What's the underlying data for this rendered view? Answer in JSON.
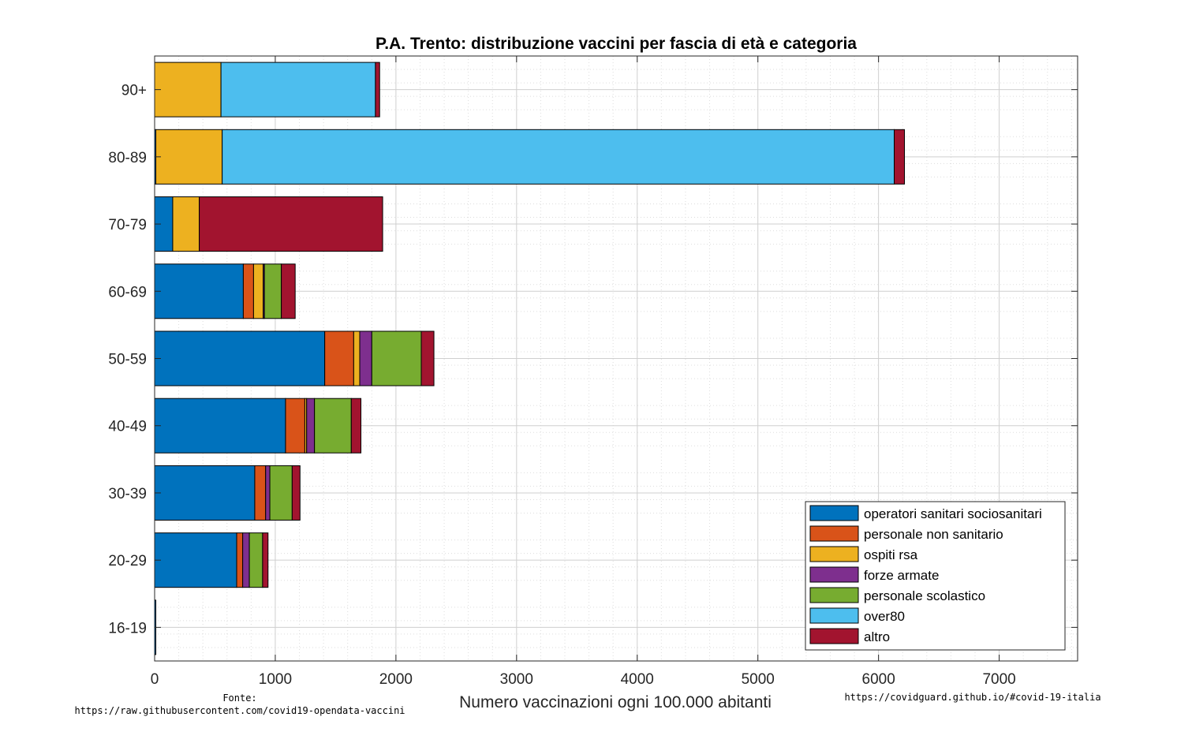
{
  "chart_data": {
    "type": "bar",
    "orientation": "horizontal",
    "stacked": true,
    "title": "P.A. Trento: distribuzione vaccini per fascia di età e categoria",
    "xlabel": "Numero vaccinazioni ogni 100.000 abitanti",
    "ylabel": "",
    "xlim": [
      0,
      7650
    ],
    "xticks": [
      0,
      1000,
      2000,
      3000,
      4000,
      5000,
      6000,
      7000
    ],
    "grid": true,
    "legend_position": "bottom-right",
    "categories": [
      "90+",
      "80-89",
      "70-79",
      "60-69",
      "50-59",
      "40-49",
      "30-39",
      "20-29",
      "16-19"
    ],
    "series": [
      {
        "name": "operatori sanitari sociosanitari",
        "color": "#0072BD",
        "values": [
          0,
          10,
          150,
          735,
          1410,
          1085,
          830,
          680,
          10
        ]
      },
      {
        "name": "personale non sanitario",
        "color": "#D95319",
        "values": [
          0,
          0,
          0,
          85,
          240,
          160,
          90,
          50,
          0
        ]
      },
      {
        "name": "ospiti rsa",
        "color": "#EDB120",
        "values": [
          550,
          550,
          220,
          80,
          50,
          15,
          0,
          0,
          0
        ]
      },
      {
        "name": "forze armate",
        "color": "#7E2F8E",
        "values": [
          0,
          0,
          0,
          10,
          100,
          65,
          35,
          55,
          0
        ]
      },
      {
        "name": "personale scolastico",
        "color": "#77AC30",
        "values": [
          0,
          0,
          0,
          140,
          410,
          305,
          185,
          110,
          0
        ]
      },
      {
        "name": "over80",
        "color": "#4DBEEE",
        "values": [
          1280,
          5570,
          0,
          0,
          0,
          0,
          0,
          0,
          0
        ]
      },
      {
        "name": "altro",
        "color": "#A2142F",
        "values": [
          35,
          85,
          1520,
          115,
          105,
          80,
          65,
          45,
          0
        ]
      }
    ]
  },
  "source_label": "Fonte:",
  "source_url": "https://raw.githubusercontent.com/covid19-opendata-vaccini",
  "credit": "https://covidguard.github.io/#covid-19-italia"
}
